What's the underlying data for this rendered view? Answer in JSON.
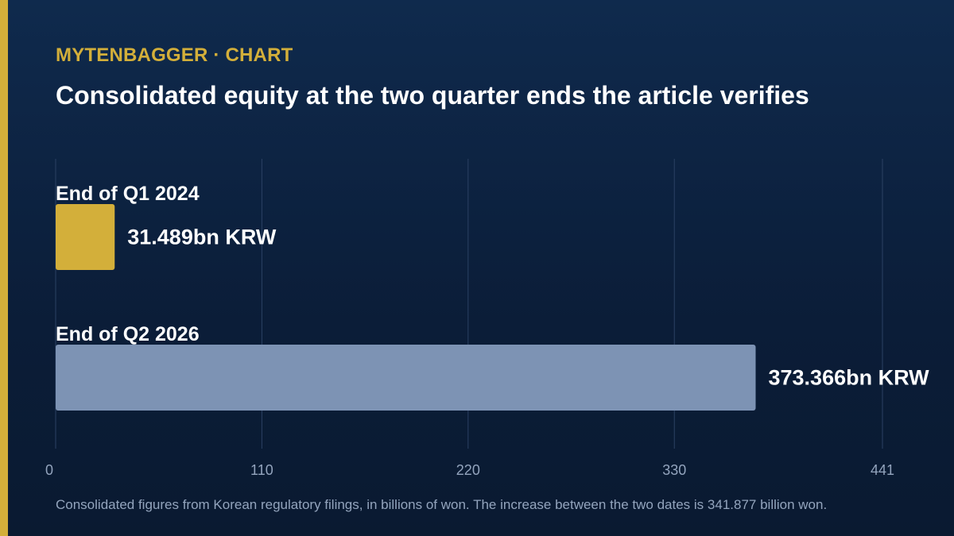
{
  "header": {
    "kicker": "MYTENBAGGER · CHART",
    "title": "Consolidated equity at the two quarter ends the article verifies"
  },
  "footnote": "Consolidated figures from Korean regulatory filings, in billions of won. The increase between the two dates is 341.877 billion won.",
  "colors": {
    "accent": "#d3af3a",
    "bar_q1_2024": "#d3af3a",
    "bar_q2_2026": "#7d93b4",
    "gridline": "#2b4163",
    "tick_text": "#93a4bd"
  },
  "chart_data": {
    "type": "bar",
    "orientation": "horizontal",
    "categories": [
      "End of Q1 2024",
      "End of Q2 2026"
    ],
    "values": [
      31.489,
      373.366
    ],
    "value_labels": [
      "31.489bn KRW",
      "373.366bn KRW"
    ],
    "xlim": [
      0,
      441
    ],
    "xticks": [
      0,
      110,
      220,
      330,
      441
    ],
    "grid": true,
    "legend": "none"
  }
}
